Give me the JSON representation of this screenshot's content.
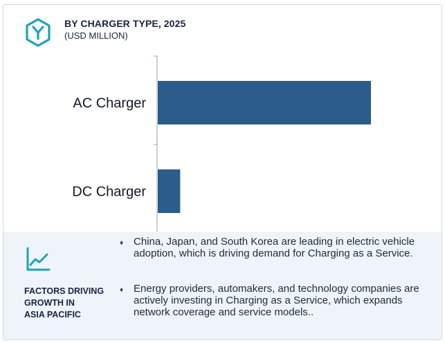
{
  "header": {
    "title": "BY CHARGER TYPE, 2025",
    "subtitle": "(USD MILLION)",
    "icon": "hexagon-y-icon"
  },
  "chart_data": {
    "type": "bar",
    "orientation": "horizontal",
    "title": "BY CHARGER TYPE, 2025",
    "subtitle": "(USD MILLION)",
    "categories": [
      "AC Charger",
      "DC Charger"
    ],
    "values": [
      100,
      10.5
    ],
    "values_note_unit": "relative",
    "xlabel": "",
    "ylabel": "",
    "grid": false,
    "bar_color": "#2b5c8a"
  },
  "footer": {
    "icon": "trend-line-icon",
    "factors_title_lines": [
      "FACTORS DRIVING",
      "GROWTH IN",
      "ASIA PACIFIC"
    ],
    "bullets": [
      "China, Japan, and South Korea are leading in electric vehicle adoption, which is driving demand for Charging as a Service.",
      "Energy providers, automakers, and technology companies are actively investing in Charging as a Service, which expands network coverage and service models.."
    ],
    "bullet_glyph": "♦"
  },
  "colors": {
    "accent": "#2b5c8a",
    "footer_bg": "#eef4f9",
    "icon_teal": "#1aa3b8"
  }
}
